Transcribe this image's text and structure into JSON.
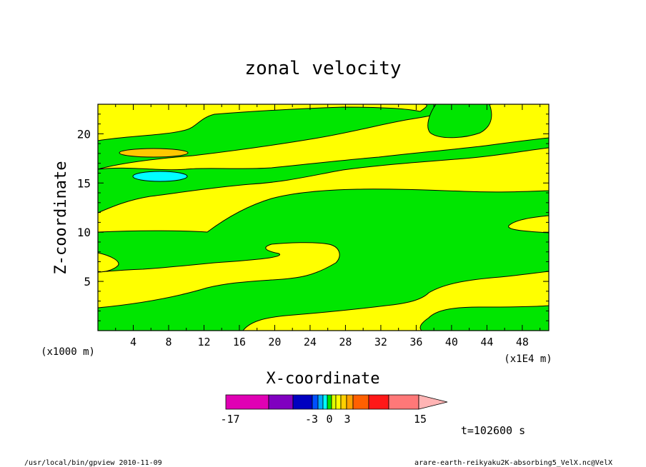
{
  "chart_data": {
    "type": "contour",
    "title": "zonal velocity",
    "xlabel": "X-coordinate",
    "ylabel": "Z-coordinate",
    "x_unit_label": "(x1E4 m)",
    "y_unit_label": "(x1000 m)",
    "xlim": [
      0,
      51
    ],
    "ylim": [
      0,
      23
    ],
    "x_ticks": [
      "4",
      "8",
      "12",
      "16",
      "20",
      "24",
      "28",
      "32",
      "36",
      "40",
      "44",
      "48"
    ],
    "y_ticks": [
      "5",
      "10",
      "15",
      "20"
    ],
    "colorbar": {
      "labels": [
        "-17",
        "-3",
        "0",
        "3",
        "15"
      ],
      "colors": [
        "#e000b4",
        "#8000c0",
        "#0000c0",
        "#0050ff",
        "#00aaff",
        "#00ffff",
        "#00e000",
        "#e0ff00",
        "#ffff00",
        "#ffd000",
        "#ffa000",
        "#ff6000",
        "#ff1818",
        "#ff7878",
        "#ffb4b4"
      ]
    },
    "time_label": "t=102600 s",
    "colors": {
      "green": "#00e600",
      "yellow": "#ffff00",
      "orange": "#ffc800",
      "cyan": "#00ffff"
    }
  },
  "footer": {
    "left": "/usr/local/bin/gpview   2010-11-09",
    "right": "arare-earth-reikyaku2K-absorbing5_VelX.nc@VelX"
  }
}
